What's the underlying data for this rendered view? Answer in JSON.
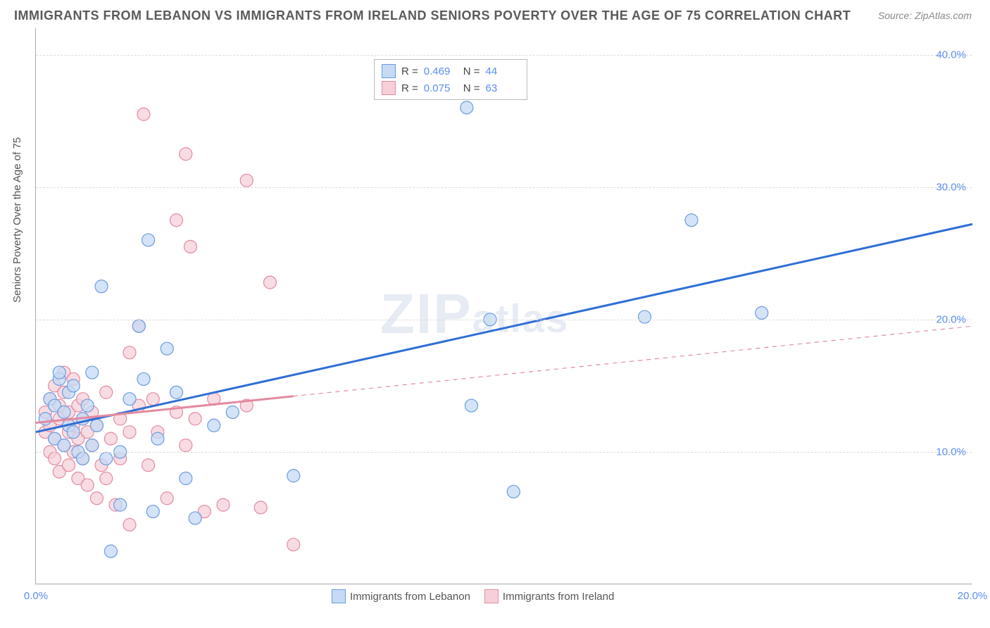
{
  "title": "IMMIGRANTS FROM LEBANON VS IMMIGRANTS FROM IRELAND SENIORS POVERTY OVER THE AGE OF 75 CORRELATION CHART",
  "source": "Source: ZipAtlas.com",
  "y_axis_label": "Seniors Poverty Over the Age of 75",
  "watermark": {
    "main": "ZIP",
    "sub": "atlas"
  },
  "chart": {
    "type": "scatter",
    "xlim": [
      0,
      20
    ],
    "ylim": [
      0,
      42
    ],
    "x_ticks": [
      {
        "v": 0,
        "l": "0.0%"
      },
      {
        "v": 20,
        "l": "20.0%"
      }
    ],
    "y_ticks": [
      {
        "v": 10,
        "l": "10.0%"
      },
      {
        "v": 20,
        "l": "20.0%"
      },
      {
        "v": 30,
        "l": "30.0%"
      },
      {
        "v": 40,
        "l": "40.0%"
      }
    ],
    "background_color": "#ffffff",
    "grid_color": "#dddddd",
    "axis_color": "#aaaaaa",
    "tick_label_color": "#5b8def",
    "marker_radius": 9,
    "marker_stroke_width": 1.2,
    "reg_line_width": 3,
    "series": [
      {
        "name": "Immigrants from Lebanon",
        "fill": "#c6daf4",
        "stroke": "#6a9ce0",
        "R": "0.469",
        "N": "44",
        "regression": {
          "x1": 0,
          "y1": 11.5,
          "x2": 20,
          "y2": 27.2,
          "dashed_from_x": null
        },
        "points": [
          [
            0.2,
            12.5
          ],
          [
            0.3,
            14.0
          ],
          [
            0.4,
            11.0
          ],
          [
            0.4,
            13.5
          ],
          [
            0.5,
            15.5
          ],
          [
            0.5,
            16.0
          ],
          [
            0.6,
            10.5
          ],
          [
            0.6,
            13.0
          ],
          [
            0.7,
            12.0
          ],
          [
            0.7,
            14.5
          ],
          [
            0.8,
            11.5
          ],
          [
            0.8,
            15.0
          ],
          [
            0.9,
            10.0
          ],
          [
            1.0,
            12.5
          ],
          [
            1.0,
            9.5
          ],
          [
            1.1,
            13.5
          ],
          [
            1.2,
            10.5
          ],
          [
            1.2,
            16.0
          ],
          [
            1.3,
            12.0
          ],
          [
            1.4,
            22.5
          ],
          [
            1.5,
            9.5
          ],
          [
            1.6,
            2.5
          ],
          [
            1.8,
            6.0
          ],
          [
            1.8,
            10.0
          ],
          [
            2.0,
            14.0
          ],
          [
            2.2,
            19.5
          ],
          [
            2.3,
            15.5
          ],
          [
            2.4,
            26.0
          ],
          [
            2.5,
            5.5
          ],
          [
            2.6,
            11.0
          ],
          [
            2.8,
            17.8
          ],
          [
            3.0,
            14.5
          ],
          [
            3.2,
            8.0
          ],
          [
            3.4,
            5.0
          ],
          [
            3.8,
            12.0
          ],
          [
            4.2,
            13.0
          ],
          [
            5.5,
            8.2
          ],
          [
            9.2,
            36.0
          ],
          [
            9.3,
            13.5
          ],
          [
            9.7,
            20.0
          ],
          [
            10.2,
            7.0
          ],
          [
            13.0,
            20.2
          ],
          [
            14.0,
            27.5
          ],
          [
            15.5,
            20.5
          ]
        ]
      },
      {
        "name": "Immigrants from Ireland",
        "fill": "#f6d0d9",
        "stroke": "#e38aa0",
        "R": "0.075",
        "N": "63",
        "regression": {
          "x1": 0,
          "y1": 12.2,
          "x2": 20,
          "y2": 19.5,
          "dashed_from_x": 5.5
        },
        "points": [
          [
            0.2,
            11.5
          ],
          [
            0.2,
            13.0
          ],
          [
            0.3,
            10.0
          ],
          [
            0.3,
            12.0
          ],
          [
            0.3,
            14.0
          ],
          [
            0.4,
            9.5
          ],
          [
            0.4,
            11.0
          ],
          [
            0.4,
            15.0
          ],
          [
            0.5,
            8.5
          ],
          [
            0.5,
            12.5
          ],
          [
            0.5,
            13.5
          ],
          [
            0.6,
            10.5
          ],
          [
            0.6,
            14.5
          ],
          [
            0.6,
            16.0
          ],
          [
            0.7,
            9.0
          ],
          [
            0.7,
            11.5
          ],
          [
            0.7,
            13.0
          ],
          [
            0.8,
            10.0
          ],
          [
            0.8,
            12.0
          ],
          [
            0.8,
            15.5
          ],
          [
            0.9,
            8.0
          ],
          [
            0.9,
            11.0
          ],
          [
            0.9,
            13.5
          ],
          [
            1.0,
            9.5
          ],
          [
            1.0,
            12.5
          ],
          [
            1.0,
            14.0
          ],
          [
            1.1,
            7.5
          ],
          [
            1.1,
            11.5
          ],
          [
            1.2,
            10.5
          ],
          [
            1.2,
            13.0
          ],
          [
            1.3,
            6.5
          ],
          [
            1.3,
            12.0
          ],
          [
            1.4,
            9.0
          ],
          [
            1.5,
            14.5
          ],
          [
            1.5,
            8.0
          ],
          [
            1.6,
            11.0
          ],
          [
            1.7,
            6.0
          ],
          [
            1.8,
            12.5
          ],
          [
            1.8,
            9.5
          ],
          [
            2.0,
            17.5
          ],
          [
            2.0,
            11.5
          ],
          [
            2.0,
            4.5
          ],
          [
            2.2,
            13.5
          ],
          [
            2.2,
            19.5
          ],
          [
            2.3,
            35.5
          ],
          [
            2.4,
            9.0
          ],
          [
            2.5,
            14.0
          ],
          [
            2.6,
            11.5
          ],
          [
            2.8,
            6.5
          ],
          [
            3.0,
            27.5
          ],
          [
            3.0,
            13.0
          ],
          [
            3.2,
            10.5
          ],
          [
            3.2,
            32.5
          ],
          [
            3.3,
            25.5
          ],
          [
            3.4,
            12.5
          ],
          [
            3.6,
            5.5
          ],
          [
            3.8,
            14.0
          ],
          [
            4.0,
            6.0
          ],
          [
            4.5,
            30.5
          ],
          [
            4.5,
            13.5
          ],
          [
            4.8,
            5.8
          ],
          [
            5.0,
            22.8
          ],
          [
            5.5,
            3.0
          ]
        ]
      }
    ]
  }
}
